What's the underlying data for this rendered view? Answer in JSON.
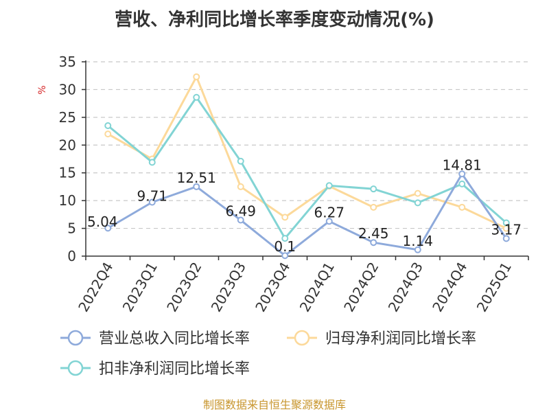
{
  "title": "营收、净利同比增长率季度变动情况(%)",
  "footer": "制图数据来自恒生聚源数据库",
  "chart_data": {
    "type": "line",
    "ylabel": "%",
    "ylim": [
      0,
      35
    ],
    "yticks": [
      0,
      5,
      10,
      15,
      20,
      25,
      30,
      35
    ],
    "grid": true,
    "legend_position": "bottom",
    "categories": [
      "2022Q4",
      "2023Q1",
      "2023Q2",
      "2023Q3",
      "2023Q4",
      "2024Q1",
      "2024Q2",
      "2024Q3",
      "2024Q4",
      "2025Q1"
    ],
    "series": [
      {
        "name": "营业总收入同比增长率",
        "color": "#8eaadb",
        "show_labels": true,
        "values": [
          5.04,
          9.71,
          12.51,
          6.49,
          0.1,
          6.27,
          2.45,
          1.14,
          14.81,
          3.17
        ]
      },
      {
        "name": "归母净利润同比增长率",
        "color": "#fcd99a",
        "show_labels": false,
        "values": [
          22.0,
          17.5,
          32.3,
          12.5,
          7.0,
          12.6,
          8.8,
          11.3,
          8.8,
          5.0
        ]
      },
      {
        "name": "扣非净利润同比增长率",
        "color": "#82d4d4",
        "show_labels": false,
        "values": [
          23.5,
          16.9,
          28.6,
          17.1,
          3.2,
          12.7,
          12.1,
          9.6,
          13.0,
          6.0
        ]
      }
    ]
  }
}
